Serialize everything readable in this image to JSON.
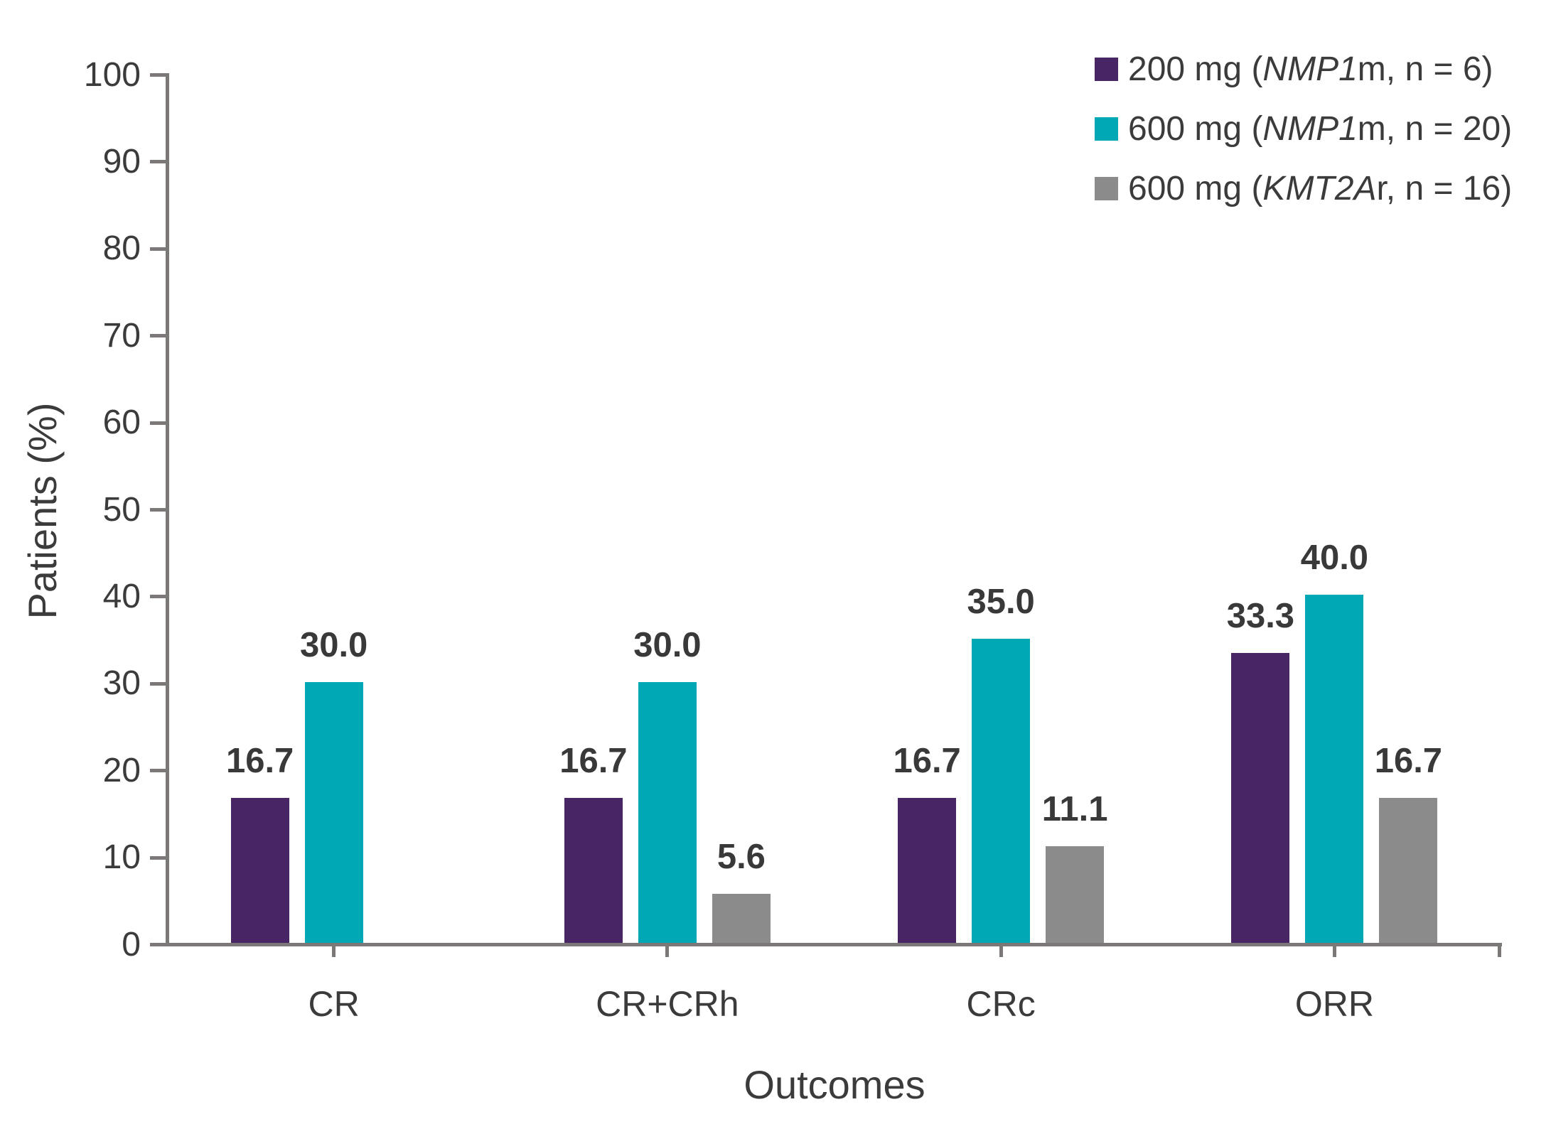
{
  "chart_data": {
    "type": "bar",
    "title": "",
    "categories": [
      "CR",
      "CR+CRh",
      "CRc",
      "ORR"
    ],
    "series": [
      {
        "name": "200 mg (NMP1m, n = 6)",
        "label_prefix": "200 mg (",
        "gene_italic": "NMP1",
        "label_suffix": "m, n = 6)",
        "color": "#482665",
        "values": [
          16.7,
          16.7,
          16.7,
          33.3
        ]
      },
      {
        "name": "600 mg (NMP1m, n = 20)",
        "label_prefix": "600 mg (",
        "gene_italic": "NMP1",
        "label_suffix": "m, n = 20)",
        "color": "#00A8B5",
        "values": [
          30.0,
          30.0,
          35.0,
          40.0
        ]
      },
      {
        "name": "600 mg (KMT2Ar, n = 16)",
        "label_prefix": "600 mg (",
        "gene_italic": "KMT2A",
        "label_suffix": "r, n = 16)",
        "color": "#8B8B8B",
        "values": [
          null,
          5.6,
          11.1,
          16.7
        ]
      }
    ],
    "xlabel": "Outcomes",
    "ylabel": "Patients (%)",
    "ylim": [
      0,
      100
    ],
    "ytick_step": 10,
    "value_label_decimals": 1,
    "grid": false,
    "legend_position": "top-right",
    "axis_color": "#7c7878",
    "text_color": "#3b3b3b"
  }
}
